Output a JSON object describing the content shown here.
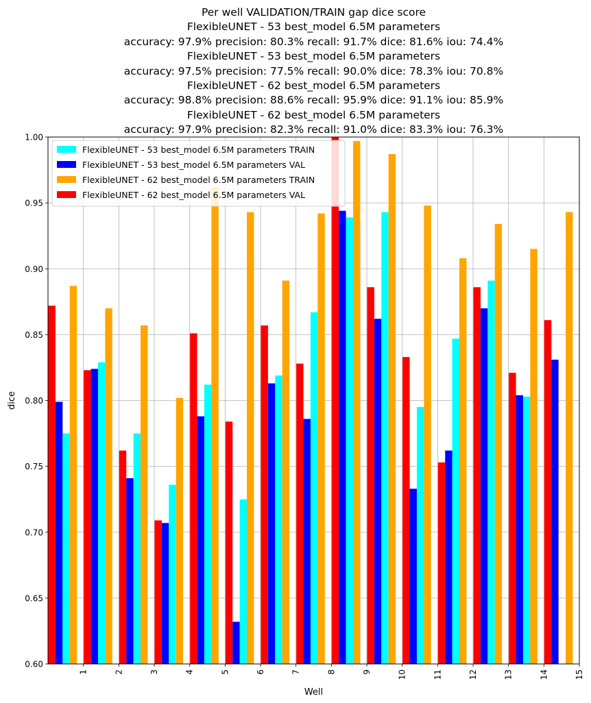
{
  "chart_data": {
    "type": "bar",
    "title": "Per well VALIDATION/TRAIN gap dice score",
    "subtitle_lines": [
      "FlexibleUNET - 53 best_model 6.5M parameters",
      "accuracy: 97.9% precision: 80.3% recall: 91.7% dice: 81.6% iou: 74.4%",
      "FlexibleUNET - 53 best_model 6.5M parameters",
      "accuracy: 97.5% precision: 77.5% recall: 90.0% dice: 78.3% iou: 70.8%",
      "FlexibleUNET - 62 best_model 6.5M parameters",
      "accuracy: 98.8% precision: 88.6% recall: 95.9% dice: 91.1% iou: 85.9%",
      "FlexibleUNET - 62 best_model 6.5M parameters",
      "accuracy: 97.9% precision: 82.3% recall: 91.0% dice: 83.3% iou: 76.3%"
    ],
    "xlabel": "Well",
    "ylabel": "dice",
    "ylim": [
      0.6,
      1.0
    ],
    "yticks": [
      "0.60",
      "0.65",
      "0.70",
      "0.75",
      "0.80",
      "0.85",
      "0.90",
      "0.95",
      "1.00"
    ],
    "categories": [
      "1",
      "2",
      "3",
      "4",
      "5",
      "6",
      "7",
      "8",
      "9",
      "10",
      "11",
      "12",
      "13",
      "14",
      "15"
    ],
    "grid": true,
    "legend_position": "top-left",
    "series_draw_order": [
      3,
      1,
      0,
      2
    ],
    "series": [
      {
        "name": "FlexibleUNET - 53 best_model 6.5M parameters TRAIN",
        "color": "#00ffff",
        "values": [
          0.775,
          0.829,
          0.775,
          0.736,
          0.812,
          0.725,
          0.819,
          0.867,
          0.939,
          0.943,
          0.795,
          0.847,
          0.891,
          0.803,
          0.6
        ]
      },
      {
        "name": "FlexibleUNET - 53 best_model 6.5M parameters VAL",
        "color": "#0000ff",
        "values": [
          0.799,
          0.824,
          0.741,
          0.707,
          0.788,
          0.632,
          0.813,
          0.786,
          0.944,
          0.862,
          0.733,
          0.762,
          0.87,
          0.804,
          0.831
        ]
      },
      {
        "name": "FlexibleUNET - 62 best_model 6.5M parameters TRAIN",
        "color": "#ffa500",
        "values": [
          0.887,
          0.87,
          0.857,
          0.802,
          0.962,
          0.943,
          0.891,
          0.942,
          0.997,
          0.987,
          0.948,
          0.908,
          0.934,
          0.915,
          0.943
        ]
      },
      {
        "name": "FlexibleUNET - 62 best_model 6.5M parameters VAL",
        "color": "#ff0000",
        "values": [
          0.872,
          0.823,
          0.762,
          0.709,
          0.851,
          0.784,
          0.857,
          0.828,
          1.0,
          0.886,
          0.833,
          0.753,
          0.886,
          0.821,
          0.861
        ]
      }
    ]
  }
}
